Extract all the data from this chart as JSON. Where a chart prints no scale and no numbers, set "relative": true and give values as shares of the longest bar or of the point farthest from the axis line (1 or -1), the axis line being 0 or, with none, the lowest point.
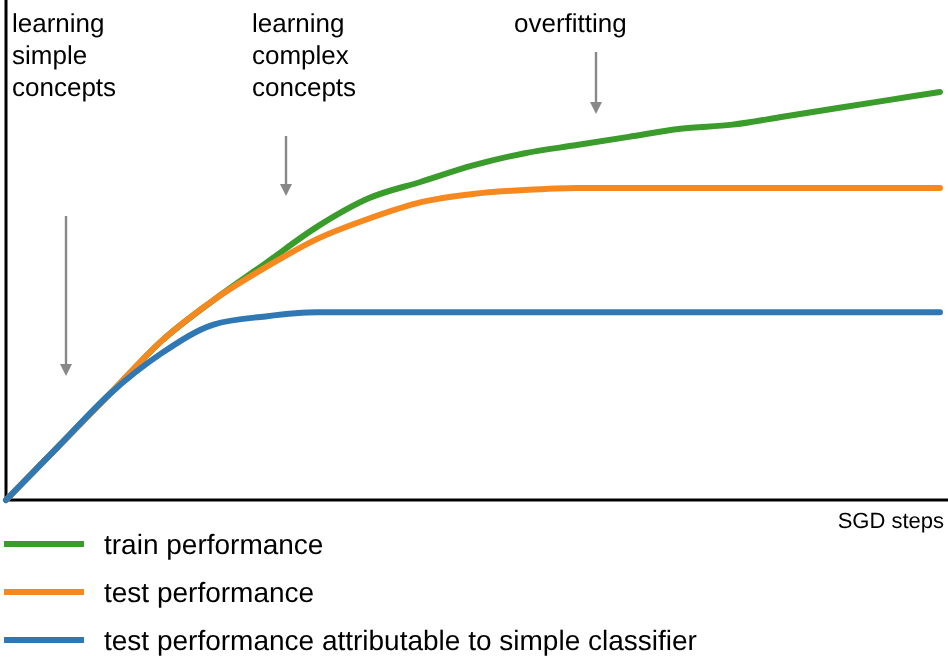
{
  "chart_data": {
    "type": "line",
    "relative": true,
    "xlabel": "SGD steps",
    "legend": "bottom",
    "categories": [
      null,
      null,
      null,
      null,
      null,
      null,
      null,
      null,
      null,
      null,
      null,
      null,
      null,
      null,
      null,
      null,
      null,
      null,
      null
    ],
    "series": [
      {
        "name": "train performance",
        "color": "#3a9c2a",
        "values": [
          0,
          0.13,
          0.26,
          0.39,
          0.49,
          0.58,
          0.67,
          0.74,
          0.78,
          0.82,
          0.85,
          0.87,
          0.89,
          0.91,
          0.92,
          0.94,
          0.96,
          0.98,
          1
        ]
      },
      {
        "name": "test performance",
        "color": "#f5891f",
        "values": [
          0,
          0.13,
          0.26,
          0.39,
          0.49,
          0.57,
          0.64,
          0.69,
          0.73,
          0.75,
          0.76,
          0.765,
          0.765,
          0.765,
          0.765,
          0.765,
          0.765,
          0.765,
          0.765
        ]
      },
      {
        "name": "test performance attributable to simple classifier",
        "color": "#2f78b4",
        "values": [
          0,
          0.13,
          0.26,
          0.36,
          0.43,
          0.45,
          0.46,
          0.46,
          0.46,
          0.46,
          0.46,
          0.46,
          0.46,
          0.46,
          0.46,
          0.46,
          0.46,
          0.46,
          0.46
        ]
      }
    ],
    "annotations": [
      "learning\nsimple\nconcepts",
      "learning\ncomplex\nconcepts",
      "overfitting"
    ]
  }
}
